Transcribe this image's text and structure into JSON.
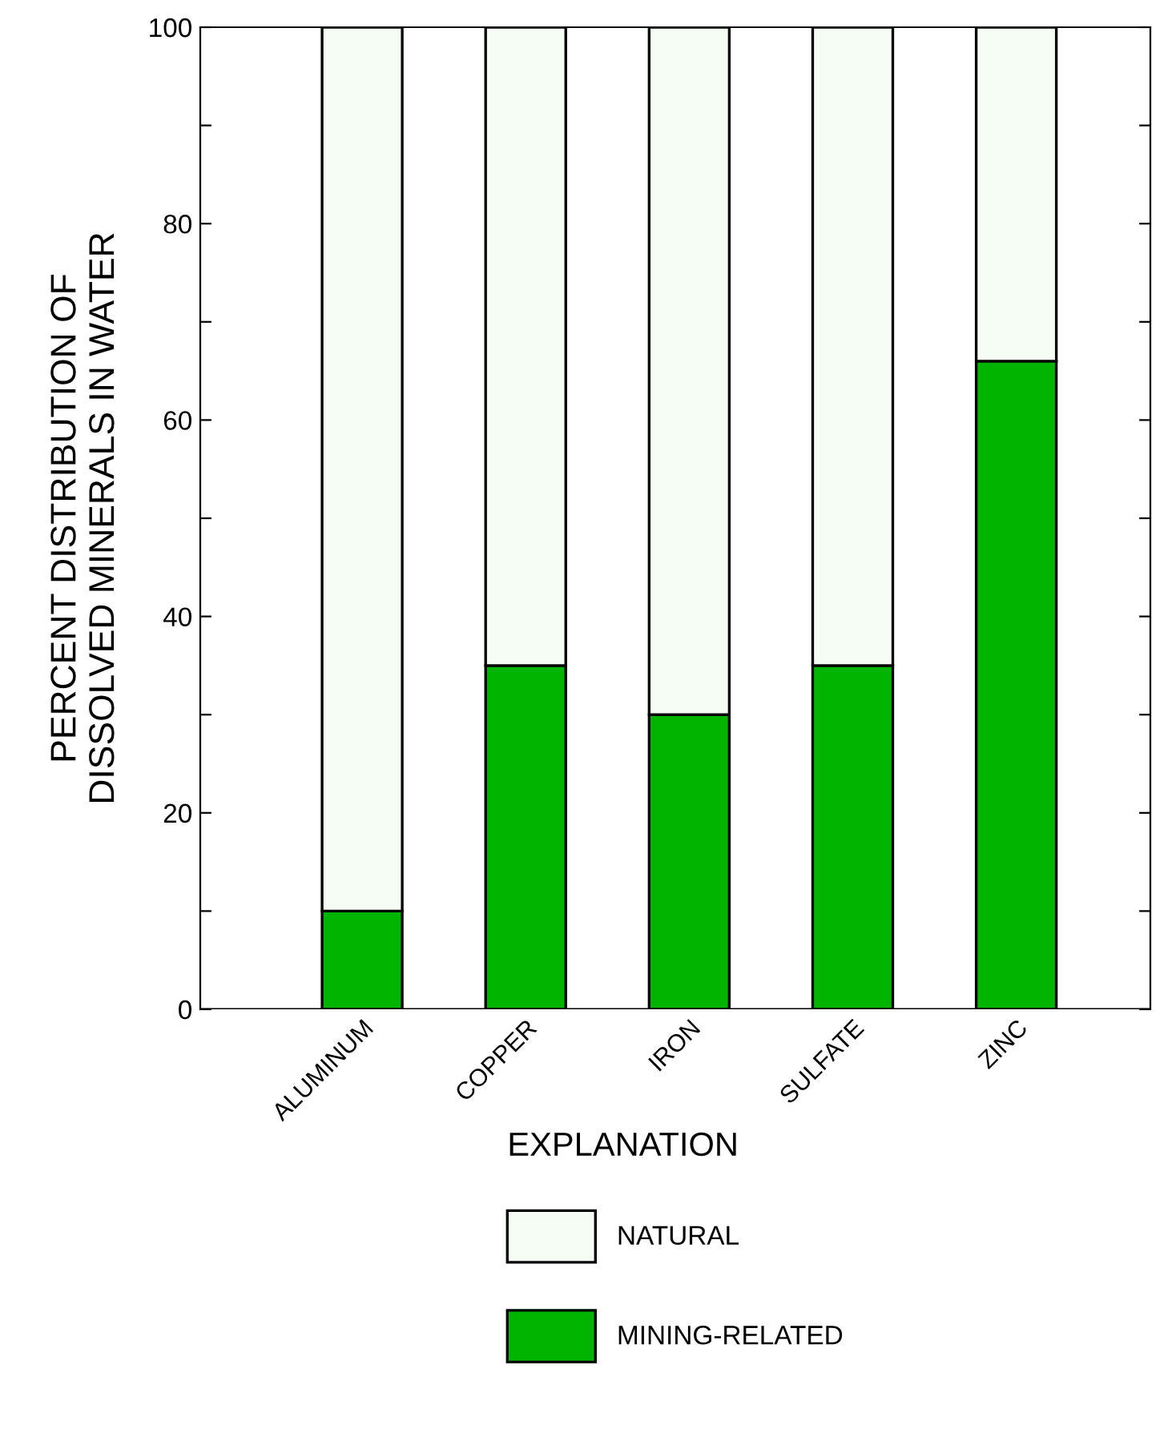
{
  "chart_data": {
    "type": "bar",
    "stacked": true,
    "ylabel": "PERCENT DISTRIBUTION OF\nDISSOLVED MINERALS IN WATER",
    "legend_title": "EXPLANATION",
    "legend": "bottom",
    "grid": false,
    "categories": [
      "ALUMINUM",
      "COPPER",
      "IRON",
      "SULFATE",
      "ZINC"
    ],
    "series": [
      {
        "name": "MINING-RELATED",
        "color": "#00b400",
        "values": [
          10,
          35,
          30,
          35,
          66
        ]
      },
      {
        "name": "NATURAL",
        "color": "#f4fcf4",
        "values": [
          90,
          65,
          70,
          65,
          34
        ]
      }
    ],
    "ylim": [
      0,
      100
    ],
    "yticks": [
      0,
      {
        "value": 10,
        "label": null
      },
      20,
      {
        "value": 30,
        "label": null
      },
      40,
      {
        "value": 50,
        "label": null
      },
      60,
      {
        "value": 70,
        "label": null
      },
      80,
      {
        "value": 90,
        "label": null
      },
      100
    ]
  }
}
